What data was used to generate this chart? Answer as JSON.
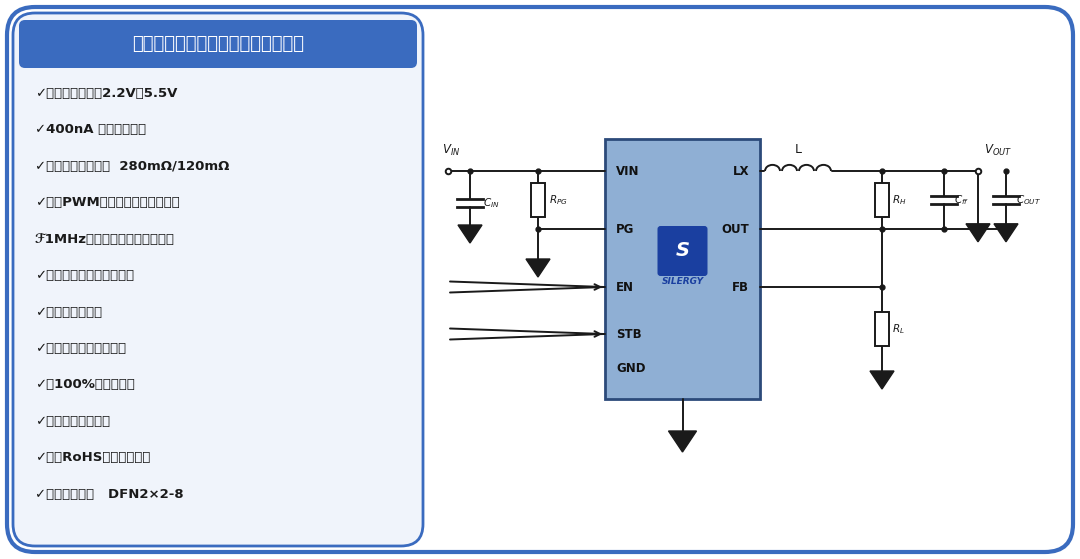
{
  "title": "矽力杰超低静态电流降压稳压器方案",
  "title_bg": "#3a6bbf",
  "title_color": "#ffffff",
  "bg_color": "#ffffff",
  "border_color": "#3a6bbf",
  "left_panel_bg": "#f0f4fb",
  "features": [
    "✓输入电压范围：2.2V～5.5V",
    "✓400nA 超低静态电流",
    "✓内部开关低导通：  280mΩ/120mΩ",
    "✓快速PWM控制实现极速动态响应",
    "ℱ1MHz高开关频率减少外部元件",
    "✓内部软启动限制过冲电流",
    "✓电源正常指示器",
    "✓打嗝模式输出短路保护",
    "✓可100%占空比运行",
    "✓输出自动放电功能",
    "✓符合RoHS标准且无卤素",
    "✓紧凑型封装：   DFN2×2-8"
  ],
  "chip_color": "#8fafd4",
  "chip_border": "#2c4a7a",
  "wire_color": "#1a1a1a",
  "text_color": "#1a1a1a",
  "silergy_blue": "#1a3fa0"
}
